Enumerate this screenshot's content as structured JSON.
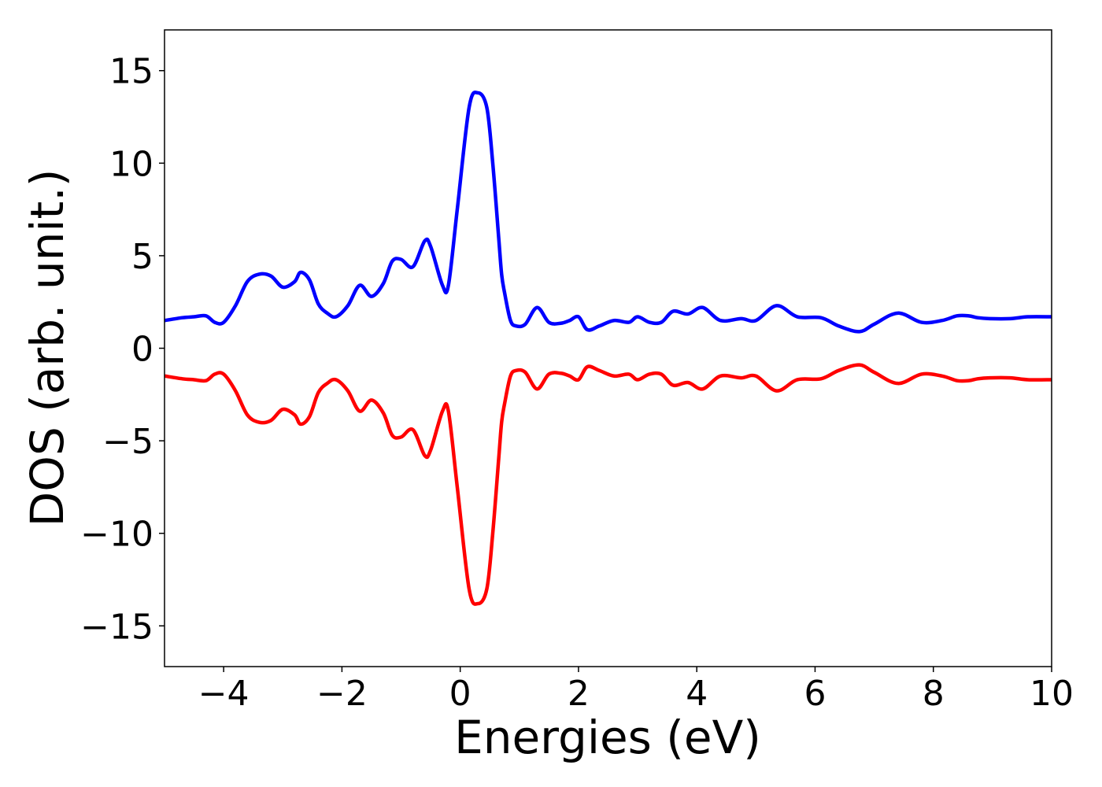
{
  "chart_data": {
    "type": "line",
    "xlabel": "Energies (eV)",
    "ylabel": "DOS (arb. unit.)",
    "xlim": [
      -5,
      10
    ],
    "ylim": [
      -17.2,
      17.2
    ],
    "xticks": [
      -4,
      -2,
      0,
      2,
      4,
      6,
      8,
      10
    ],
    "xtick_labels": [
      "−4",
      "−2",
      "0",
      "2",
      "4",
      "6",
      "8",
      "10"
    ],
    "yticks": [
      15,
      10,
      5,
      0,
      -5,
      -10,
      -15
    ],
    "ytick_labels": [
      "15",
      "10",
      "5",
      "0",
      "−5",
      "−10",
      "−15"
    ],
    "grid": false,
    "x": [
      -5.0,
      -4.7,
      -4.5,
      -4.3,
      -4.15,
      -4.0,
      -3.8,
      -3.6,
      -3.4,
      -3.2,
      -3.0,
      -2.8,
      -2.7,
      -2.55,
      -2.4,
      -2.25,
      -2.1,
      -1.9,
      -1.7,
      -1.5,
      -1.3,
      -1.15,
      -1.0,
      -0.8,
      -0.6,
      -0.5,
      -0.3,
      -0.2,
      -0.05,
      0.15,
      0.3,
      0.45,
      0.55,
      0.65,
      0.7,
      0.75,
      0.85,
      0.95,
      1.1,
      1.3,
      1.5,
      1.7,
      1.85,
      2.0,
      2.15,
      2.35,
      2.6,
      2.85,
      3.0,
      3.2,
      3.4,
      3.6,
      3.85,
      4.1,
      4.4,
      4.75,
      5.0,
      5.35,
      5.7,
      6.1,
      6.4,
      6.75,
      7.0,
      7.4,
      7.8,
      8.15,
      8.4,
      8.6,
      8.75,
      8.95,
      9.3,
      9.6,
      10.0
    ],
    "series": [
      {
        "color": "#0000ff",
        "values": [
          1.5,
          1.65,
          1.7,
          1.75,
          1.4,
          1.4,
          2.3,
          3.6,
          4.0,
          3.9,
          3.3,
          3.6,
          4.1,
          3.7,
          2.4,
          1.9,
          1.7,
          2.3,
          3.4,
          2.8,
          3.5,
          4.7,
          4.8,
          4.4,
          5.8,
          5.5,
          3.4,
          3.4,
          7.5,
          13.0,
          13.8,
          13.0,
          10.0,
          6.0,
          4.0,
          3.0,
          1.5,
          1.2,
          1.3,
          2.2,
          1.4,
          1.35,
          1.5,
          1.7,
          1.0,
          1.2,
          1.5,
          1.4,
          1.7,
          1.4,
          1.4,
          2.0,
          1.85,
          2.2,
          1.5,
          1.6,
          1.5,
          2.3,
          1.7,
          1.65,
          1.2,
          0.9,
          1.3,
          1.9,
          1.4,
          1.5,
          1.75,
          1.75,
          1.65,
          1.6,
          1.6,
          1.7,
          1.7
        ]
      },
      {
        "color": "#ff0000",
        "values": [
          -1.5,
          -1.65,
          -1.7,
          -1.75,
          -1.4,
          -1.4,
          -2.3,
          -3.6,
          -4.0,
          -3.9,
          -3.3,
          -3.6,
          -4.1,
          -3.7,
          -2.4,
          -1.9,
          -1.7,
          -2.3,
          -3.4,
          -2.8,
          -3.5,
          -4.7,
          -4.8,
          -4.4,
          -5.8,
          -5.5,
          -3.4,
          -3.4,
          -7.5,
          -13.0,
          -13.8,
          -13.0,
          -10.0,
          -6.0,
          -4.0,
          -3.0,
          -1.5,
          -1.2,
          -1.3,
          -2.2,
          -1.4,
          -1.35,
          -1.5,
          -1.7,
          -1.0,
          -1.2,
          -1.5,
          -1.4,
          -1.7,
          -1.4,
          -1.4,
          -2.0,
          -1.85,
          -2.2,
          -1.5,
          -1.6,
          -1.5,
          -2.3,
          -1.7,
          -1.65,
          -1.2,
          -0.9,
          -1.3,
          -1.9,
          -1.4,
          -1.5,
          -1.75,
          -1.75,
          -1.65,
          -1.6,
          -1.6,
          -1.7,
          -1.7
        ]
      }
    ]
  }
}
